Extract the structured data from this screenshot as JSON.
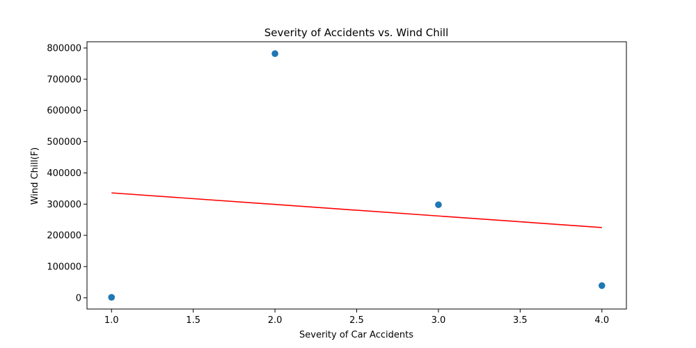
{
  "chart_data": {
    "type": "scatter",
    "title": "Severity of Accidents vs. Wind Chill",
    "xlabel": "Severity of  Car Accidents",
    "ylabel": "Wind Chill(F)",
    "xlim": [
      0.85,
      4.15
    ],
    "ylim": [
      -36000,
      820000
    ],
    "x_ticks": [
      1.0,
      1.5,
      2.0,
      2.5,
      3.0,
      3.5,
      4.0
    ],
    "x_tick_labels": [
      "1.0",
      "1.5",
      "2.0",
      "2.5",
      "3.0",
      "3.5",
      "4.0"
    ],
    "y_ticks": [
      0,
      100000,
      200000,
      300000,
      400000,
      500000,
      600000,
      700000,
      800000
    ],
    "y_tick_labels": [
      "0",
      "100000",
      "200000",
      "300000",
      "400000",
      "500000",
      "600000",
      "700000",
      "800000"
    ],
    "grid": false,
    "series": [
      {
        "type": "scatter",
        "color": "#1f77b4",
        "x": [
          1,
          2,
          3,
          4
        ],
        "y": [
          1500,
          782000,
          298000,
          39000
        ]
      },
      {
        "type": "line",
        "color": "#ff0000",
        "x": [
          1,
          4
        ],
        "y": [
          336000,
          225000
        ]
      }
    ]
  }
}
